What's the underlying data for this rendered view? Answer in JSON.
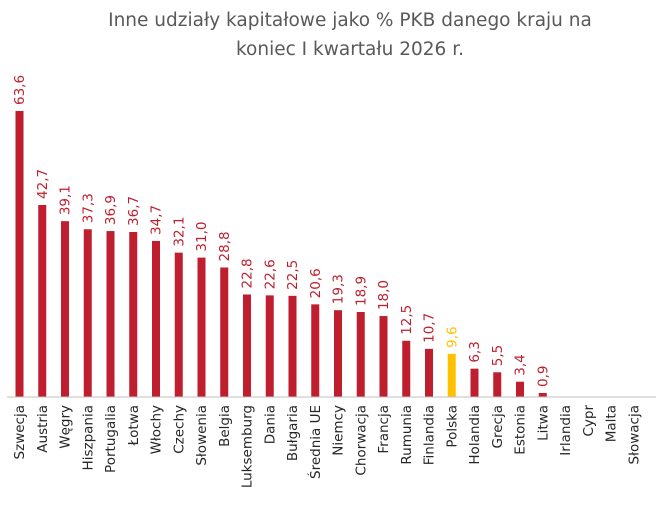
{
  "chart_data": {
    "type": "bar",
    "title_lines": [
      "Inne udziały kapitałowe jako % PKB danego kraju na",
      "koniec I kwartału 2026 r."
    ],
    "categories": [
      "Szwecja",
      "Austria",
      "Węgry",
      "Hiszpania",
      "Portugalia",
      "Łotwa",
      "Włochy",
      "Czechy",
      "Słowenia",
      "Belgia",
      "Luksemburg",
      "Dania",
      "Bułgaria",
      "Średnia UE",
      "Niemcy",
      "Chorwacja",
      "Francja",
      "Rumunia",
      "Finlandia",
      "Polska",
      "Holandia",
      "Grecja",
      "Estonia",
      "Litwa",
      "Irlandia",
      "Cypr",
      "Malta",
      "Słowacja"
    ],
    "values": [
      63.6,
      42.7,
      39.1,
      37.3,
      36.9,
      36.7,
      34.7,
      32.1,
      31.0,
      28.8,
      22.8,
      22.6,
      22.5,
      20.6,
      19.3,
      18.9,
      18.0,
      12.5,
      10.7,
      9.6,
      6.3,
      5.5,
      3.4,
      0.9,
      null,
      null,
      null,
      null
    ],
    "value_labels": [
      "63,6",
      "42,7",
      "39,1",
      "37,3",
      "36,9",
      "36,7",
      "34,7",
      "32,1",
      "31,0",
      "28,8",
      "22,8",
      "22,6",
      "22,5",
      "20,6",
      "19,3",
      "18,9",
      "18,0",
      "12,5",
      "10,7",
      "9,6",
      "6,3",
      "5,5",
      "3,4",
      "0,9",
      "",
      "",
      "",
      ""
    ],
    "highlight_category": "Polska",
    "colors": {
      "bar": "#BE1E2D",
      "highlight": "#FFC000",
      "axis": "#BFBFBF",
      "title": "#595959"
    },
    "ylim": [
      0,
      64
    ],
    "grid": false,
    "legend": "none"
  }
}
